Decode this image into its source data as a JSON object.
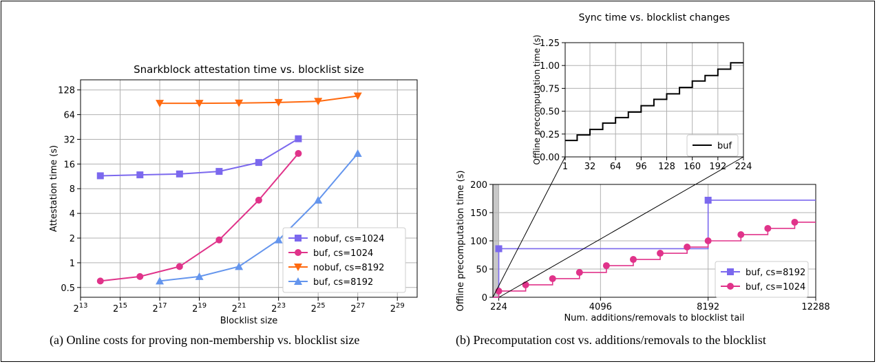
{
  "chart_data": [
    {
      "type": "line",
      "title": "Snarkblock attestation time vs. blocklist size",
      "xlabel": "Blocklist size",
      "ylabel": "Attestation time (s)",
      "x_scale": "log2",
      "y_scale": "log2",
      "xlim": [
        8192,
        1073741824
      ],
      "ylim": [
        0.38,
        170
      ],
      "xticks": [
        8192,
        32768,
        131072,
        524288,
        2097152,
        8388608,
        33554432,
        134217728,
        536870912
      ],
      "xtick_labels": [
        "2^13",
        "2^15",
        "2^17",
        "2^19",
        "2^21",
        "2^23",
        "2^25",
        "2^27",
        "2^29"
      ],
      "yticks": [
        0.5,
        1,
        2,
        4,
        8,
        16,
        32,
        64,
        128
      ],
      "ytick_labels": [
        "0.5",
        "1",
        "2",
        "4",
        "8",
        "16",
        "32",
        "64",
        "128"
      ],
      "grid": true,
      "legend_position": "lower-right",
      "series": [
        {
          "name": "nobuf, cs=1024",
          "color": "#7b68ee",
          "marker": "square",
          "x": [
            16384,
            65536,
            262144,
            1048576,
            4194304,
            16777216
          ],
          "y": [
            11.5,
            11.8,
            12.1,
            13.0,
            16.7,
            32.5
          ]
        },
        {
          "name": "buf, cs=1024",
          "color": "#e0338a",
          "marker": "circle",
          "x": [
            16384,
            65536,
            262144,
            1048576,
            4194304,
            16777216
          ],
          "y": [
            0.6,
            0.68,
            0.9,
            1.9,
            5.8,
            21.5
          ]
        },
        {
          "name": "nobuf, cs=8192",
          "color": "#ff6a10",
          "marker": "triangle-down",
          "x": [
            131072,
            524288,
            2097152,
            8388608,
            33554432,
            134217728
          ],
          "y": [
            88,
            88,
            88.5,
            90,
            93,
            108
          ]
        },
        {
          "name": "buf, cs=8192",
          "color": "#6495ed",
          "marker": "triangle-up",
          "x": [
            131072,
            524288,
            2097152,
            8388608,
            33554432,
            134217728
          ],
          "y": [
            0.6,
            0.68,
            0.9,
            1.9,
            5.8,
            21.5
          ]
        }
      ],
      "caption": "(a) Online costs for proving non-membership vs. blocklist size"
    },
    {
      "type": "line",
      "title": "",
      "xlabel": "Num. additions/removals to blocklist tail",
      "ylabel": "Offline precomputation time (s)",
      "xlim": [
        0,
        12288
      ],
      "ylim": [
        0,
        200
      ],
      "xticks": [
        224,
        4096,
        8192,
        12288
      ],
      "xtick_labels": [
        "224",
        "4096",
        "8192",
        "12288"
      ],
      "yticks": [
        0,
        50,
        100,
        150,
        200
      ],
      "ytick_labels": [
        "0",
        "50",
        "100",
        "150",
        "200"
      ],
      "grid": true,
      "legend_position": "lower-right",
      "shaded_region": [
        0,
        224
      ],
      "series": [
        {
          "name": "buf, cs=8192",
          "color": "#7b68ee",
          "marker": "square",
          "drawstyle": "steps-post",
          "x": [
            0,
            224,
            8192,
            12288
          ],
          "y": [
            0,
            86,
            172,
            172
          ]
        },
        {
          "name": "buf, cs=1024",
          "color": "#e0338a",
          "marker": "circle",
          "drawstyle": "steps-post",
          "x": [
            0,
            224,
            1248,
            2272,
            3296,
            4320,
            5344,
            6368,
            7392,
            8192,
            9440,
            10464,
            11488,
            12288
          ],
          "y": [
            0,
            11,
            22,
            33,
            44,
            56,
            67,
            78,
            89,
            100,
            111,
            122,
            133,
            133
          ]
        }
      ],
      "caption": "(b) Precomputation cost vs. additions/removals to the blocklist"
    },
    {
      "type": "line",
      "title": "Sync time vs. blocklist changes",
      "xlabel": "",
      "ylabel": "Offline precomputation time (s)",
      "xlim": [
        1,
        224
      ],
      "ylim": [
        0,
        1.25
      ],
      "xticks": [
        1,
        32,
        64,
        96,
        128,
        160,
        192,
        224
      ],
      "xtick_labels": [
        "1",
        "32",
        "64",
        "96",
        "128",
        "160",
        "192",
        "224"
      ],
      "yticks": [
        0,
        0.25,
        0.5,
        0.75,
        1.0,
        1.25
      ],
      "ytick_labels": [
        "0.00",
        "0.25",
        "0.50",
        "0.75",
        "1.00",
        "1.25"
      ],
      "grid": true,
      "legend_position": "lower-right",
      "series": [
        {
          "name": "buf",
          "color": "#000000",
          "drawstyle": "steps-post",
          "x": [
            1,
            16,
            32,
            48,
            64,
            80,
            96,
            112,
            128,
            144,
            160,
            176,
            192,
            208,
            224
          ],
          "y": [
            0.18,
            0.24,
            0.3,
            0.37,
            0.43,
            0.49,
            0.56,
            0.63,
            0.69,
            0.76,
            0.83,
            0.89,
            0.96,
            1.03,
            1.03
          ]
        }
      ]
    }
  ]
}
